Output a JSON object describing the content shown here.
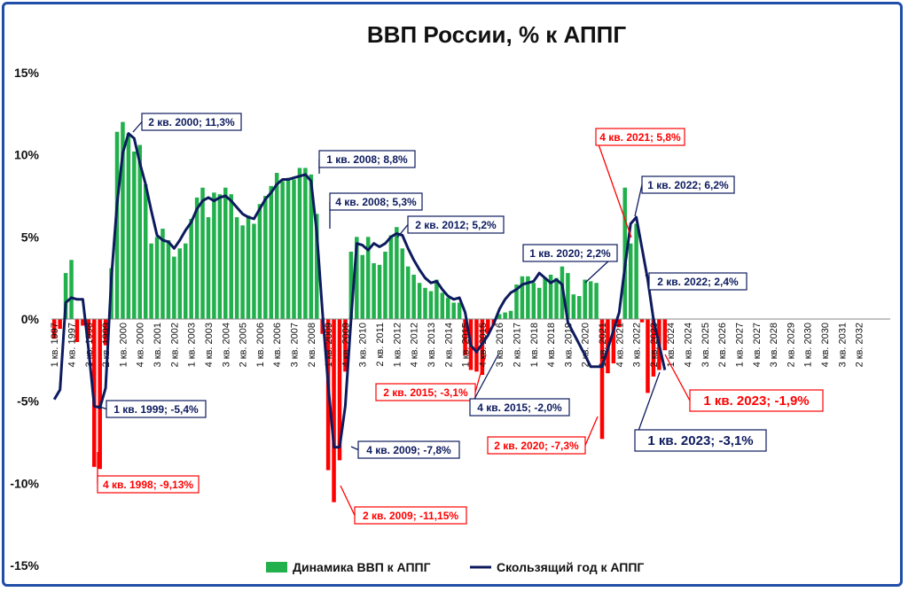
{
  "chart_data": {
    "type": "bar",
    "title": "ВВП России, % к АППГ",
    "ylim": [
      -15,
      15
    ],
    "y_ticks": [
      "15%",
      "10%",
      "5%",
      "0%",
      "-5%",
      "-10%",
      "-15%"
    ],
    "y_tick_values": [
      15,
      10,
      5,
      0,
      -5,
      -10,
      -15
    ],
    "x_axis_labels": [
      "1 кв. 1997",
      "4 кв. 1997",
      "3 кв. 1998",
      "2 кв. 1999",
      "1 кв. 2000",
      "4 кв. 2000",
      "3 кв. 2001",
      "2 кв. 2002",
      "1 кв. 2003",
      "4 кв. 2003",
      "3 кв. 2004",
      "2 кв. 2005",
      "1 кв. 2006",
      "4 кв. 2006",
      "3 кв. 2007",
      "2 кв. 2008",
      "1 кв. 2009",
      "4 кв. 2009",
      "3 кв. 2010",
      "2 кв. 2011",
      "1 кв. 2012",
      "4 кв. 2012",
      "3 кв. 2013",
      "2 кв. 2014",
      "1 кв. 2015",
      "4 кв. 2015",
      "3 кв. 2016",
      "2 кв. 2017",
      "1 кв. 2018",
      "4 кв. 2018",
      "3 кв. 2019",
      "2 кв. 2020",
      "1 кв. 2021",
      "4 кв. 2021",
      "3 кв. 2022",
      "2 кв. 2023",
      "1 кв. 2024",
      "4 кв. 2024",
      "3 кв. 2025",
      "2 кв. 2026",
      "1 кв. 2027",
      "4 кв. 2027",
      "3 кв. 2028",
      "2 кв. 2029",
      "1 кв. 2030",
      "4 кв. 2030",
      "3 кв. 2031",
      "2 кв. 2032"
    ],
    "series": [
      {
        "name": "Динамика ВВП к АППГ",
        "color_positive": "#22b04c",
        "color_negative": "#ff0000",
        "values": [
          -1.2,
          -0.6,
          2.8,
          3.6,
          -1.4,
          -0.4,
          -1.2,
          -9.0,
          -9.13,
          -1.6,
          3.1,
          11.4,
          12.0,
          11.3,
          10.2,
          10.6,
          8.2,
          4.6,
          5.0,
          5.5,
          4.8,
          3.8,
          4.3,
          4.6,
          6.1,
          7.4,
          8.0,
          6.2,
          7.7,
          7.6,
          8.0,
          7.6,
          6.2,
          5.7,
          6.3,
          5.8,
          7.0,
          7.5,
          8.1,
          8.9,
          8.4,
          8.6,
          8.5,
          9.2,
          9.2,
          8.8,
          6.4,
          -0.9,
          -9.2,
          -11.15,
          -8.6,
          -3.2,
          4.1,
          5.0,
          3.9,
          5.0,
          3.4,
          3.3,
          4.1,
          5.1,
          5.6,
          4.3,
          3.2,
          2.7,
          2.2,
          1.9,
          1.7,
          2.4,
          1.6,
          1.3,
          1.0,
          1.0,
          -2.2,
          -3.1,
          -3.2,
          -3.4,
          -0.9,
          -0.4,
          0.3,
          0.4,
          0.5,
          2.1,
          2.6,
          2.6,
          2.2,
          1.9,
          2.5,
          2.7,
          2.5,
          3.2,
          2.8,
          1.5,
          1.4,
          2.4,
          2.3,
          2.2,
          -7.3,
          -3.3,
          -2.7,
          -0.5,
          8.0,
          4.6,
          5.8,
          -0.2,
          -4.5,
          -3.5,
          -3.1,
          -1.9
        ],
        "start_index": 0
      },
      {
        "name": "Скользящий год к АППГ",
        "color": "#0d1b5e",
        "values": [
          -4.9,
          -4.3,
          1.0,
          1.3,
          1.2,
          1.2,
          -1.8,
          -5.3,
          -5.4,
          -4.2,
          2.5,
          7.0,
          10.1,
          11.3,
          11.0,
          9.5,
          8.2,
          6.6,
          5.1,
          4.8,
          4.7,
          4.3,
          4.8,
          5.4,
          5.9,
          6.7,
          7.2,
          7.4,
          7.2,
          7.4,
          7.5,
          7.2,
          6.8,
          6.4,
          6.2,
          6.1,
          6.7,
          7.3,
          7.7,
          8.2,
          8.5,
          8.5,
          8.6,
          8.7,
          8.8,
          8.4,
          5.3,
          0.4,
          -4.0,
          -7.8,
          -7.8,
          -5.3,
          0.0,
          4.6,
          4.5,
          4.2,
          4.6,
          4.4,
          4.6,
          5.0,
          5.2,
          5.1,
          4.3,
          3.6,
          3.0,
          2.5,
          2.2,
          2.3,
          1.8,
          1.4,
          1.2,
          1.3,
          0.4,
          -1.6,
          -2.0,
          -1.5,
          -1.0,
          -0.3,
          0.6,
          1.2,
          1.6,
          1.8,
          2.1,
          2.2,
          2.3,
          2.8,
          2.5,
          2.2,
          2.4,
          2.1,
          -0.2,
          -2.2,
          -2.9,
          -2.9,
          0.4,
          3.2,
          5.8,
          6.2,
          2.4,
          0.0,
          -3.1
        ],
        "start_index": 0,
        "index_offset": [
          0,
          1,
          2,
          3,
          4,
          5,
          6,
          7,
          8,
          9,
          10,
          11,
          12,
          13,
          14,
          15,
          16,
          17,
          18,
          19,
          20,
          21,
          22,
          23,
          24,
          25,
          26,
          27,
          28,
          29,
          30,
          31,
          32,
          33,
          34,
          35,
          36,
          37,
          38,
          39,
          40,
          41,
          42,
          43,
          44,
          45,
          46,
          47,
          48,
          49,
          50,
          51,
          52,
          53,
          54,
          55,
          56,
          57,
          58,
          59,
          60,
          61,
          62,
          63,
          64,
          65,
          66,
          67,
          68,
          69,
          70,
          71,
          72,
          73,
          74,
          75,
          76,
          77,
          78,
          79,
          80,
          81,
          82,
          83,
          84,
          85,
          86,
          87,
          88,
          89,
          90,
          93,
          94,
          96,
          99,
          100,
          101,
          102,
          104,
          105,
          107
        ]
      }
    ],
    "annotations": [
      {
        "text": "2 кв. 2000; 11,3%",
        "color": "#0d1b5e",
        "size": "normal"
      },
      {
        "text": "1 кв. 2008; 8,8%",
        "color": "#0d1b5e",
        "size": "normal"
      },
      {
        "text": "4 кв. 2008; 5,3%",
        "color": "#0d1b5e",
        "size": "normal"
      },
      {
        "text": "2 кв. 2012; 5,2%",
        "color": "#0d1b5e",
        "size": "normal"
      },
      {
        "text": "4 кв. 2021; 5,8%",
        "color": "#ff0000",
        "size": "normal"
      },
      {
        "text": "1 кв. 2022; 6,2%",
        "color": "#0d1b5e",
        "size": "normal"
      },
      {
        "text": "1 кв. 2020; 2,2%",
        "color": "#0d1b5e",
        "size": "normal"
      },
      {
        "text": "2 кв. 2022; 2,4%",
        "color": "#0d1b5e",
        "size": "normal"
      },
      {
        "text": "1 кв. 1999; -5,4%",
        "color": "#0d1b5e",
        "size": "normal"
      },
      {
        "text": "2 кв. 2015; -3,1%",
        "color": "#ff0000",
        "size": "normal"
      },
      {
        "text": "4 кв. 2015; -2,0%",
        "color": "#0d1b5e",
        "size": "normal"
      },
      {
        "text": "1 кв. 2023; -1,9%",
        "color": "#ff0000",
        "size": "big"
      },
      {
        "text": "4 кв. 2009; -7,8%",
        "color": "#0d1b5e",
        "size": "normal"
      },
      {
        "text": "2 кв. 2020; -7,3%",
        "color": "#ff0000",
        "size": "normal"
      },
      {
        "text": "1 кв. 2023; -3,1%",
        "color": "#0d1b5e",
        "size": "big"
      },
      {
        "text": "4 кв. 1998; -9,13%",
        "color": "#ff0000",
        "size": "normal"
      },
      {
        "text": "2 кв. 2009; -11,15%",
        "color": "#ff0000",
        "size": "normal"
      }
    ],
    "legend": {
      "placement": "bottom",
      "items": [
        {
          "label": "Динамика ВВП к АППГ",
          "color": "#22b04c",
          "kind": "bar"
        },
        {
          "label": "Скользящий год к АППГ",
          "color": "#0d1b5e",
          "kind": "line"
        }
      ]
    },
    "grid": false
  }
}
